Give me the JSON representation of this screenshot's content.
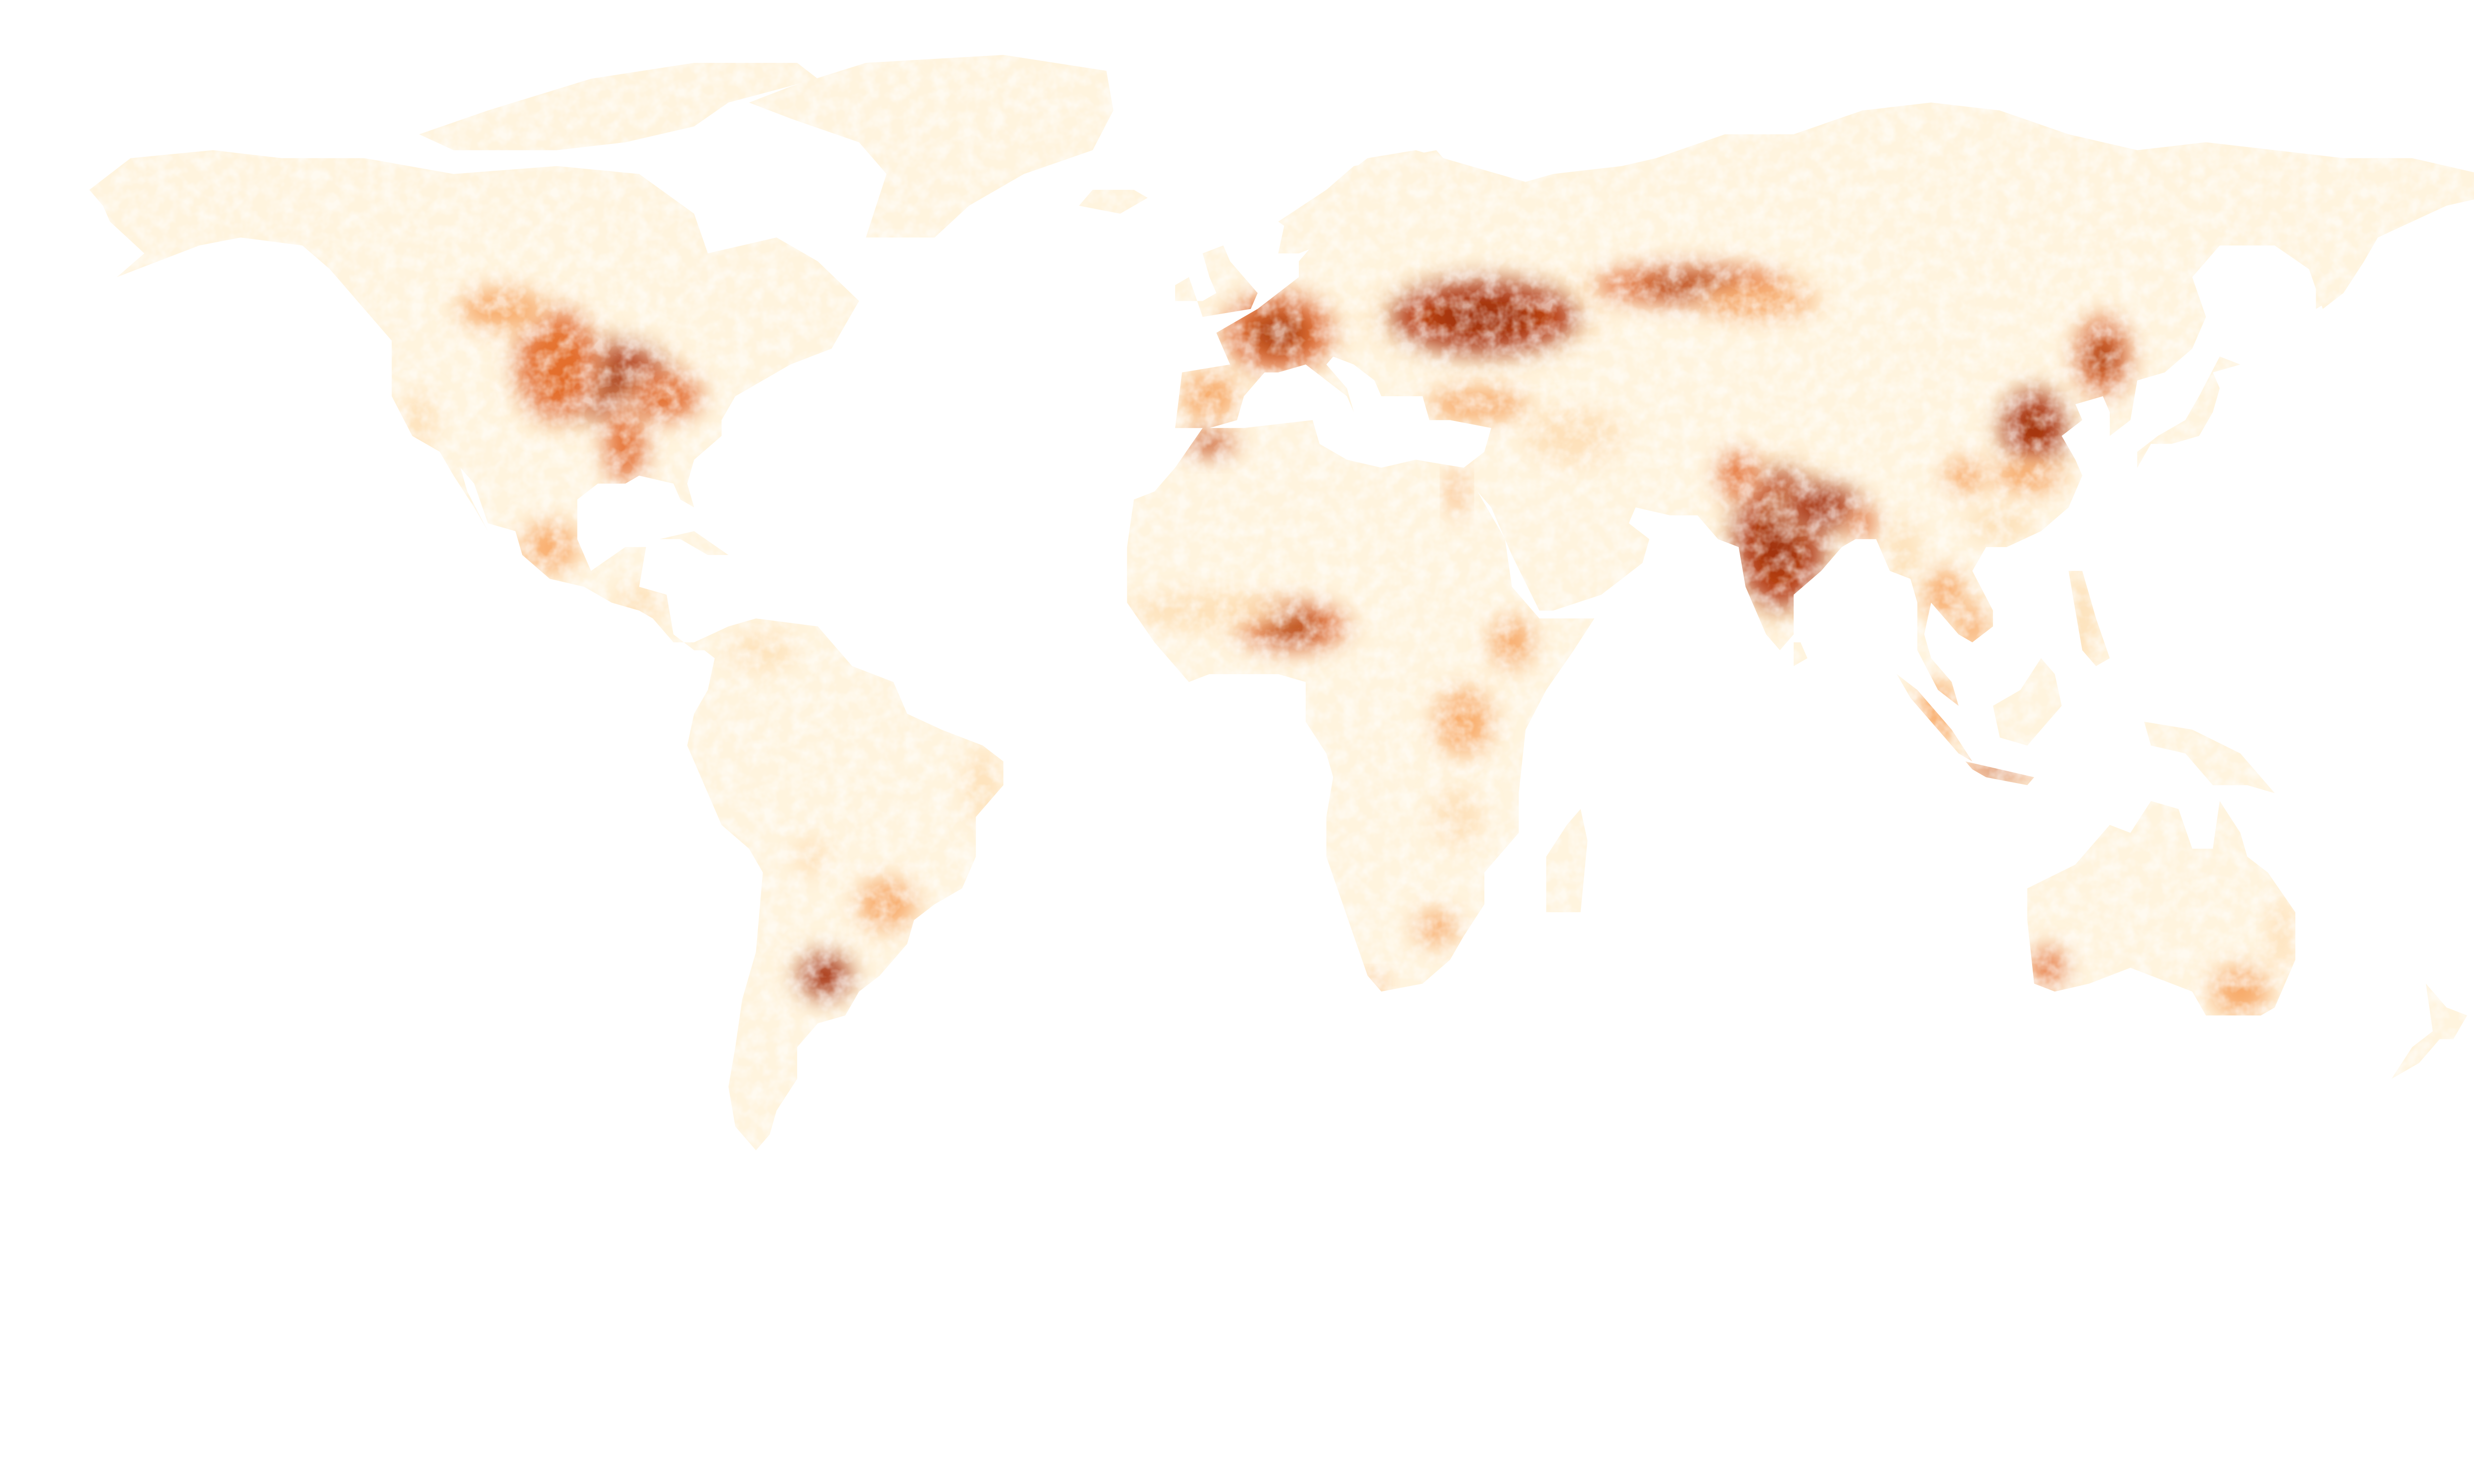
{
  "map": {
    "type": "choropleth-raster",
    "projection": "equirectangular",
    "legend": "none",
    "colors": {
      "background": "#ffffff",
      "land_low": "#fff4de",
      "land_light": "#fde0b6",
      "land_medium": "#f7a15a",
      "land_high": "#e2641e",
      "land_max": "#b93a06",
      "land_peak": "#8e2a03"
    },
    "intensity_regions": [
      {
        "name": "us-corn-belt",
        "lon": -93,
        "lat": 42,
        "rx": 10,
        "ry": 5,
        "level": 1.0
      },
      {
        "name": "us-great-plains",
        "lon": -100,
        "lat": 44,
        "rx": 6,
        "ry": 7,
        "level": 0.8
      },
      {
        "name": "us-mississippi",
        "lon": -90,
        "lat": 34,
        "rx": 3,
        "ry": 5,
        "level": 0.8
      },
      {
        "name": "us-ohio-valley",
        "lon": -84,
        "lat": 40,
        "rx": 5,
        "ry": 3,
        "level": 0.8
      },
      {
        "name": "canada-prairies",
        "lon": -108,
        "lat": 51,
        "rx": 6,
        "ry": 2.5,
        "level": 0.7
      },
      {
        "name": "us-california",
        "lon": -120,
        "lat": 37,
        "rx": 2,
        "ry": 3,
        "level": 0.5
      },
      {
        "name": "mexico",
        "lon": -101,
        "lat": 21,
        "rx": 4,
        "ry": 3,
        "level": 0.6
      },
      {
        "name": "central-america",
        "lon": -88,
        "lat": 14,
        "rx": 3,
        "ry": 2,
        "level": 0.5
      },
      {
        "name": "argentina-pampas",
        "lon": -61,
        "lat": -33,
        "rx": 4,
        "ry": 3,
        "level": 1.0
      },
      {
        "name": "southern-brazil",
        "lon": -52,
        "lat": -24,
        "rx": 4,
        "ry": 3,
        "level": 0.75
      },
      {
        "name": "brazil-east",
        "lon": -38,
        "lat": -9,
        "rx": 2,
        "ry": 4,
        "level": 0.5
      },
      {
        "name": "bolivia-lowlands",
        "lon": -63,
        "lat": -18,
        "rx": 2,
        "ry": 2,
        "level": 0.4
      },
      {
        "name": "colombia-venezuela",
        "lon": -70,
        "lat": 8,
        "rx": 4,
        "ry": 2,
        "level": 0.35
      },
      {
        "name": "western-europe",
        "lon": 5,
        "lat": 48,
        "rx": 8,
        "ry": 5,
        "level": 0.85
      },
      {
        "name": "iberia",
        "lon": -5,
        "lat": 40,
        "rx": 4,
        "ry": 3,
        "level": 0.7
      },
      {
        "name": "ukraine-south-russia",
        "lon": 35,
        "lat": 50,
        "rx": 14,
        "ry": 5,
        "level": 1.0
      },
      {
        "name": "russia-west-siberia",
        "lon": 65,
        "lat": 54,
        "rx": 14,
        "ry": 2.5,
        "level": 0.9
      },
      {
        "name": "kazakh-steppe",
        "lon": 75,
        "lat": 52,
        "rx": 8,
        "ry": 2,
        "level": 0.7
      },
      {
        "name": "turkey",
        "lon": 34,
        "lat": 39,
        "rx": 7,
        "ry": 2,
        "level": 0.7
      },
      {
        "name": "maghreb",
        "lon": -5,
        "lat": 34,
        "rx": 4,
        "ry": 1.5,
        "level": 0.85
      },
      {
        "name": "nile",
        "lon": 31,
        "lat": 28,
        "rx": 1,
        "ry": 3,
        "level": 0.6
      },
      {
        "name": "iran-iraq",
        "lon": 48,
        "lat": 35,
        "rx": 6,
        "ry": 3,
        "level": 0.45
      },
      {
        "name": "india",
        "lon": 78,
        "lat": 22,
        "rx": 7,
        "ry": 9,
        "level": 1.0
      },
      {
        "name": "gangetic-plain",
        "lon": 84,
        "lat": 26,
        "rx": 6,
        "ry": 3,
        "level": 1.0
      },
      {
        "name": "pakistan-punjab",
        "lon": 72,
        "lat": 30,
        "rx": 3,
        "ry": 3,
        "level": 0.8
      },
      {
        "name": "bangladesh",
        "lon": 90,
        "lat": 24,
        "rx": 2,
        "ry": 2,
        "level": 0.8
      },
      {
        "name": "north-china-plain",
        "lon": 115,
        "lat": 36,
        "rx": 5,
        "ry": 5,
        "level": 1.0
      },
      {
        "name": "northeast-china",
        "lon": 125,
        "lat": 45,
        "rx": 4,
        "ry": 5,
        "level": 0.85
      },
      {
        "name": "sichuan",
        "lon": 105,
        "lat": 30,
        "rx": 3,
        "ry": 2,
        "level": 0.75
      },
      {
        "name": "yangtze",
        "lon": 114,
        "lat": 30,
        "rx": 5,
        "ry": 2,
        "level": 0.75
      },
      {
        "name": "south-china",
        "lon": 110,
        "lat": 24,
        "rx": 4,
        "ry": 2,
        "level": 0.55
      },
      {
        "name": "thailand",
        "lon": 102,
        "lat": 15,
        "rx": 3,
        "ry": 3,
        "level": 0.75
      },
      {
        "name": "vietnam-mekong",
        "lon": 106,
        "lat": 11,
        "rx": 2,
        "ry": 3,
        "level": 0.7
      },
      {
        "name": "myanmar",
        "lon": 96,
        "lat": 20,
        "rx": 2,
        "ry": 4,
        "level": 0.55
      },
      {
        "name": "philippines",
        "lon": 122,
        "lat": 12,
        "rx": 2,
        "ry": 5,
        "level": 0.55
      },
      {
        "name": "java",
        "lon": 110,
        "lat": -7,
        "rx": 6,
        "ry": 1,
        "level": 0.85
      },
      {
        "name": "sumatra",
        "lon": 101,
        "lat": 0,
        "rx": 3,
        "ry": 4,
        "level": 0.6
      },
      {
        "name": "nigeria-west-africa",
        "lon": 7,
        "lat": 11,
        "rx": 8,
        "ry": 3,
        "level": 0.9
      },
      {
        "name": "sahel",
        "lon": -5,
        "lat": 13,
        "rx": 10,
        "ry": 2,
        "level": 0.5
      },
      {
        "name": "ethiopia",
        "lon": 39,
        "lat": 9,
        "rx": 3,
        "ry": 3,
        "level": 0.7
      },
      {
        "name": "east-africa-lakes",
        "lon": 32,
        "lat": -1,
        "rx": 4,
        "ry": 4,
        "level": 0.65
      },
      {
        "name": "malawi-zambia",
        "lon": 31,
        "lat": -13,
        "rx": 3,
        "ry": 3,
        "level": 0.45
      },
      {
        "name": "south-africa",
        "lon": 28,
        "lat": -27,
        "rx": 3,
        "ry": 2,
        "level": 0.7
      },
      {
        "name": "western-cape",
        "lon": 19,
        "lat": -34,
        "rx": 1.5,
        "ry": 1,
        "level": 0.7
      },
      {
        "name": "se-australia",
        "lon": 145,
        "lat": -35,
        "rx": 4,
        "ry": 3,
        "level": 0.75
      },
      {
        "name": "sw-australia",
        "lon": 117,
        "lat": -32,
        "rx": 2.5,
        "ry": 2.5,
        "level": 0.8
      },
      {
        "name": "east-australia",
        "lon": 151,
        "lat": -28,
        "rx": 1.5,
        "ry": 4,
        "level": 0.45
      }
    ]
  }
}
